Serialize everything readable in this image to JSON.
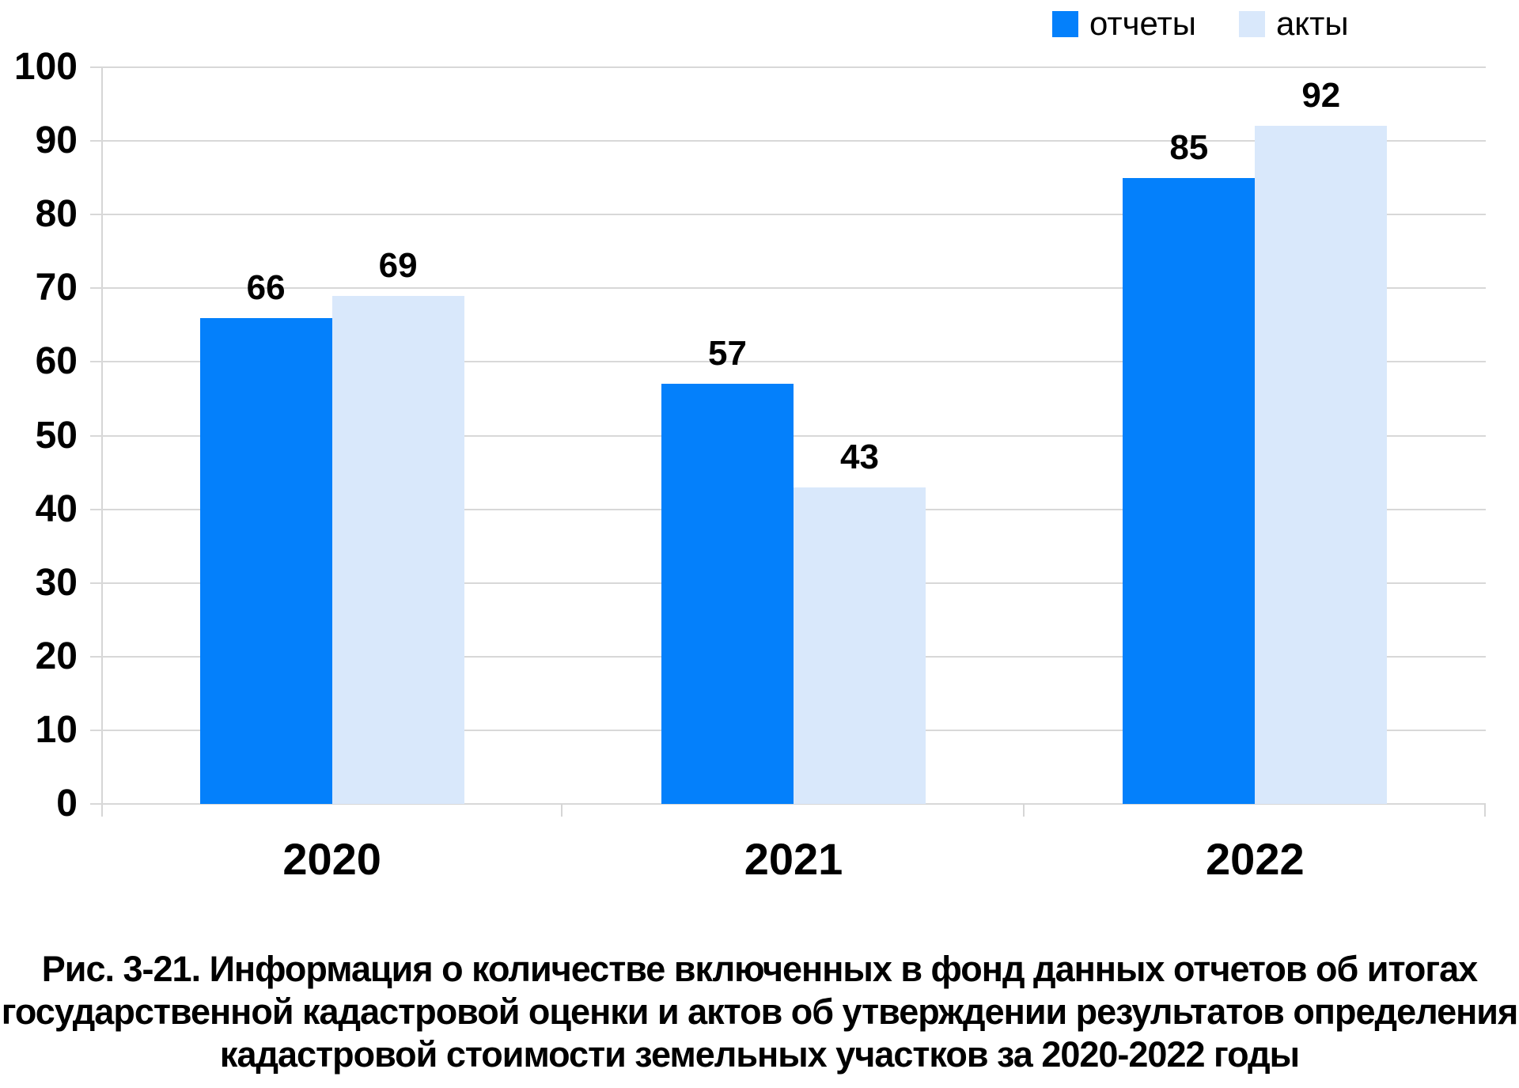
{
  "page": {
    "background": "#ffffff",
    "text_color": "#000000"
  },
  "chart_data": {
    "type": "bar",
    "title": "",
    "categories": [
      "2020",
      "2021",
      "2022"
    ],
    "series": [
      {
        "name": "отчеты",
        "color": "#0480fb",
        "values": [
          66,
          57,
          85
        ]
      },
      {
        "name": "акты",
        "color": "#d9e8fb",
        "values": [
          69,
          43,
          92
        ]
      }
    ],
    "ylim": [
      0,
      100
    ],
    "yticks": [
      0,
      10,
      20,
      30,
      40,
      50,
      60,
      70,
      80,
      90,
      100
    ],
    "grid": true,
    "gridline_color": "#d8d8d8",
    "legend_position": "top-right",
    "value_labels": [
      [
        "66",
        "57",
        "85"
      ],
      [
        "69",
        "43",
        "92"
      ]
    ],
    "value_label_position": "above-bar"
  },
  "caption": {
    "lines": [
      "Рис. 3-21. Информация о количестве включенных в фонд данных отчетов об итогах",
      "государственной кадастровой оценки и актов об утверждении результатов определения",
      "кадастровой стоимости земельных участков за 2020-2022 годы"
    ]
  }
}
